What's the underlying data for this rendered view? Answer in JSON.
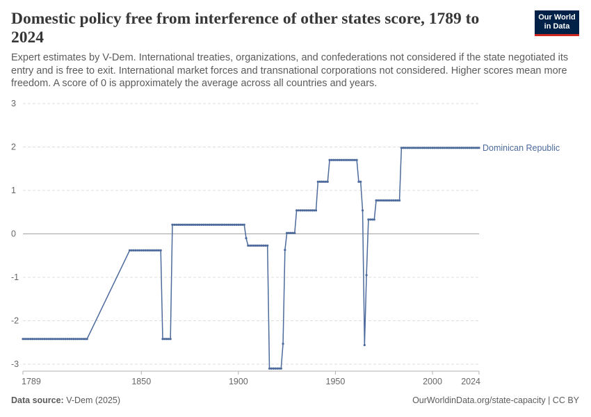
{
  "title": "Domestic policy free from interference of other states score, 1789 to 2024",
  "subtitle": "Expert estimates by V-Dem. International treaties, organizations, and confederations not considered if the state negotiated its entry and is free to exit. International market forces and transnational corporations not considered. Higher scores mean more freedom. A score of 0 is approximately the average across all countries and years.",
  "logo": {
    "line1": "Our World",
    "line2": "in Data"
  },
  "footer": {
    "source_label": "Data source:",
    "source_value": "V-Dem (2025)",
    "url": "OurWorldinData.org/state-capacity | CC BY"
  },
  "colors": {
    "series": "#4c6a9c",
    "grid": "#dddddd",
    "zero": "#a1a1a1"
  },
  "chart_data": {
    "type": "line",
    "title": "Domestic policy free from interference of other states score, 1789 to 2024",
    "xlim": [
      1789,
      2024
    ],
    "ylim": [
      -3,
      3
    ],
    "x_ticks": [
      1789,
      1850,
      1900,
      1950,
      2000,
      2024
    ],
    "y_ticks": [
      3,
      2,
      1,
      0,
      -1,
      -2,
      -3
    ],
    "y_tick_labels": [
      "3",
      "2",
      "1",
      "0",
      "-1",
      "-2",
      "-3"
    ],
    "grid": true,
    "legend": "line-end label",
    "series": [
      {
        "name": "Dominican Republic",
        "points": [
          [
            1789,
            -2.42
          ],
          [
            1822,
            -2.42
          ],
          [
            1844,
            -0.38
          ],
          [
            1860,
            -0.38
          ],
          [
            1861,
            -2.42
          ],
          [
            1865,
            -2.42
          ],
          [
            1866,
            0.21
          ],
          [
            1903,
            0.21
          ],
          [
            1904,
            -0.1
          ],
          [
            1905,
            -0.27
          ],
          [
            1915,
            -0.27
          ],
          [
            1916,
            -3.1
          ],
          [
            1922,
            -3.1
          ],
          [
            1923,
            -2.53
          ],
          [
            1924,
            -0.37
          ],
          [
            1925,
            0.02
          ],
          [
            1929,
            0.02
          ],
          [
            1930,
            0.54
          ],
          [
            1940,
            0.54
          ],
          [
            1941,
            1.2
          ],
          [
            1946,
            1.2
          ],
          [
            1947,
            1.7
          ],
          [
            1961,
            1.7
          ],
          [
            1962,
            1.2
          ],
          [
            1963,
            1.2
          ],
          [
            1964,
            0.54
          ],
          [
            1965,
            -2.56
          ],
          [
            1966,
            -0.95
          ],
          [
            1967,
            0.33
          ],
          [
            1970,
            0.33
          ],
          [
            1971,
            0.77
          ],
          [
            1983,
            0.77
          ],
          [
            1984,
            1.98
          ],
          [
            2024,
            1.98
          ]
        ]
      }
    ]
  }
}
